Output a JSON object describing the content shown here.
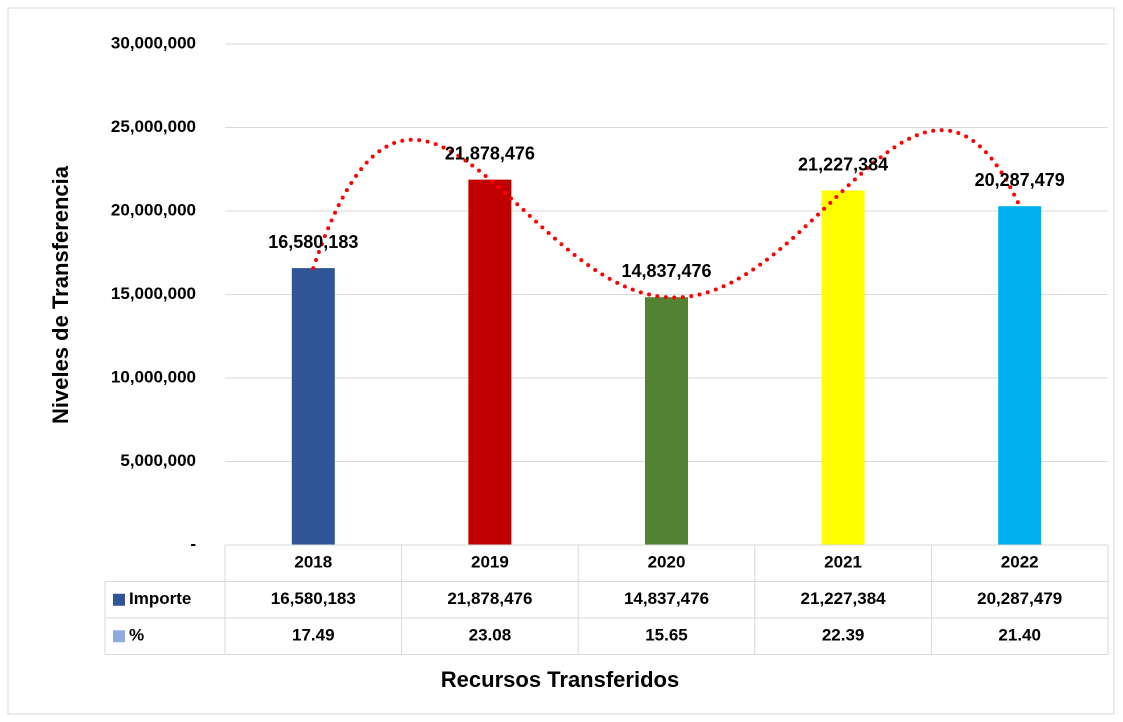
{
  "chart_data": {
    "type": "bar",
    "x_label": "Recursos Transferidos",
    "y_label": "Niveles de Transferencia",
    "categories": [
      "2018",
      "2019",
      "2020",
      "2021",
      "2022"
    ],
    "colors": [
      "#2f5597",
      "#c00000",
      "#548235",
      "#ffff00",
      "#00b0f0"
    ],
    "series": [
      {
        "name": "Importe",
        "color": "#2f5597",
        "values": [
          16580183,
          21878476,
          14837476,
          21227384,
          20287479
        ],
        "value_labels": [
          "16,580,183",
          "21,878,476",
          "14,837,476",
          "21,227,384",
          "20,287,479"
        ]
      },
      {
        "name": "%",
        "color": "#8faadc",
        "values": [
          17.49,
          23.08,
          15.65,
          22.39,
          21.4
        ],
        "value_labels": [
          "17.49",
          "23.08",
          "15.65",
          "22.39",
          "21.40"
        ]
      }
    ],
    "ylim": [
      0,
      30000000
    ],
    "yticks": [
      {
        "value": 0,
        "label": "-"
      },
      {
        "value": 5000000,
        "label": "5,000,000"
      },
      {
        "value": 10000000,
        "label": "10,000,000"
      },
      {
        "value": 15000000,
        "label": "15,000,000"
      },
      {
        "value": 20000000,
        "label": "20,000,000"
      },
      {
        "value": 25000000,
        "label": "25,000,000"
      },
      {
        "value": 30000000,
        "label": "30,000,000"
      }
    ],
    "grid": true,
    "trendline_color": "#ff0000"
  }
}
